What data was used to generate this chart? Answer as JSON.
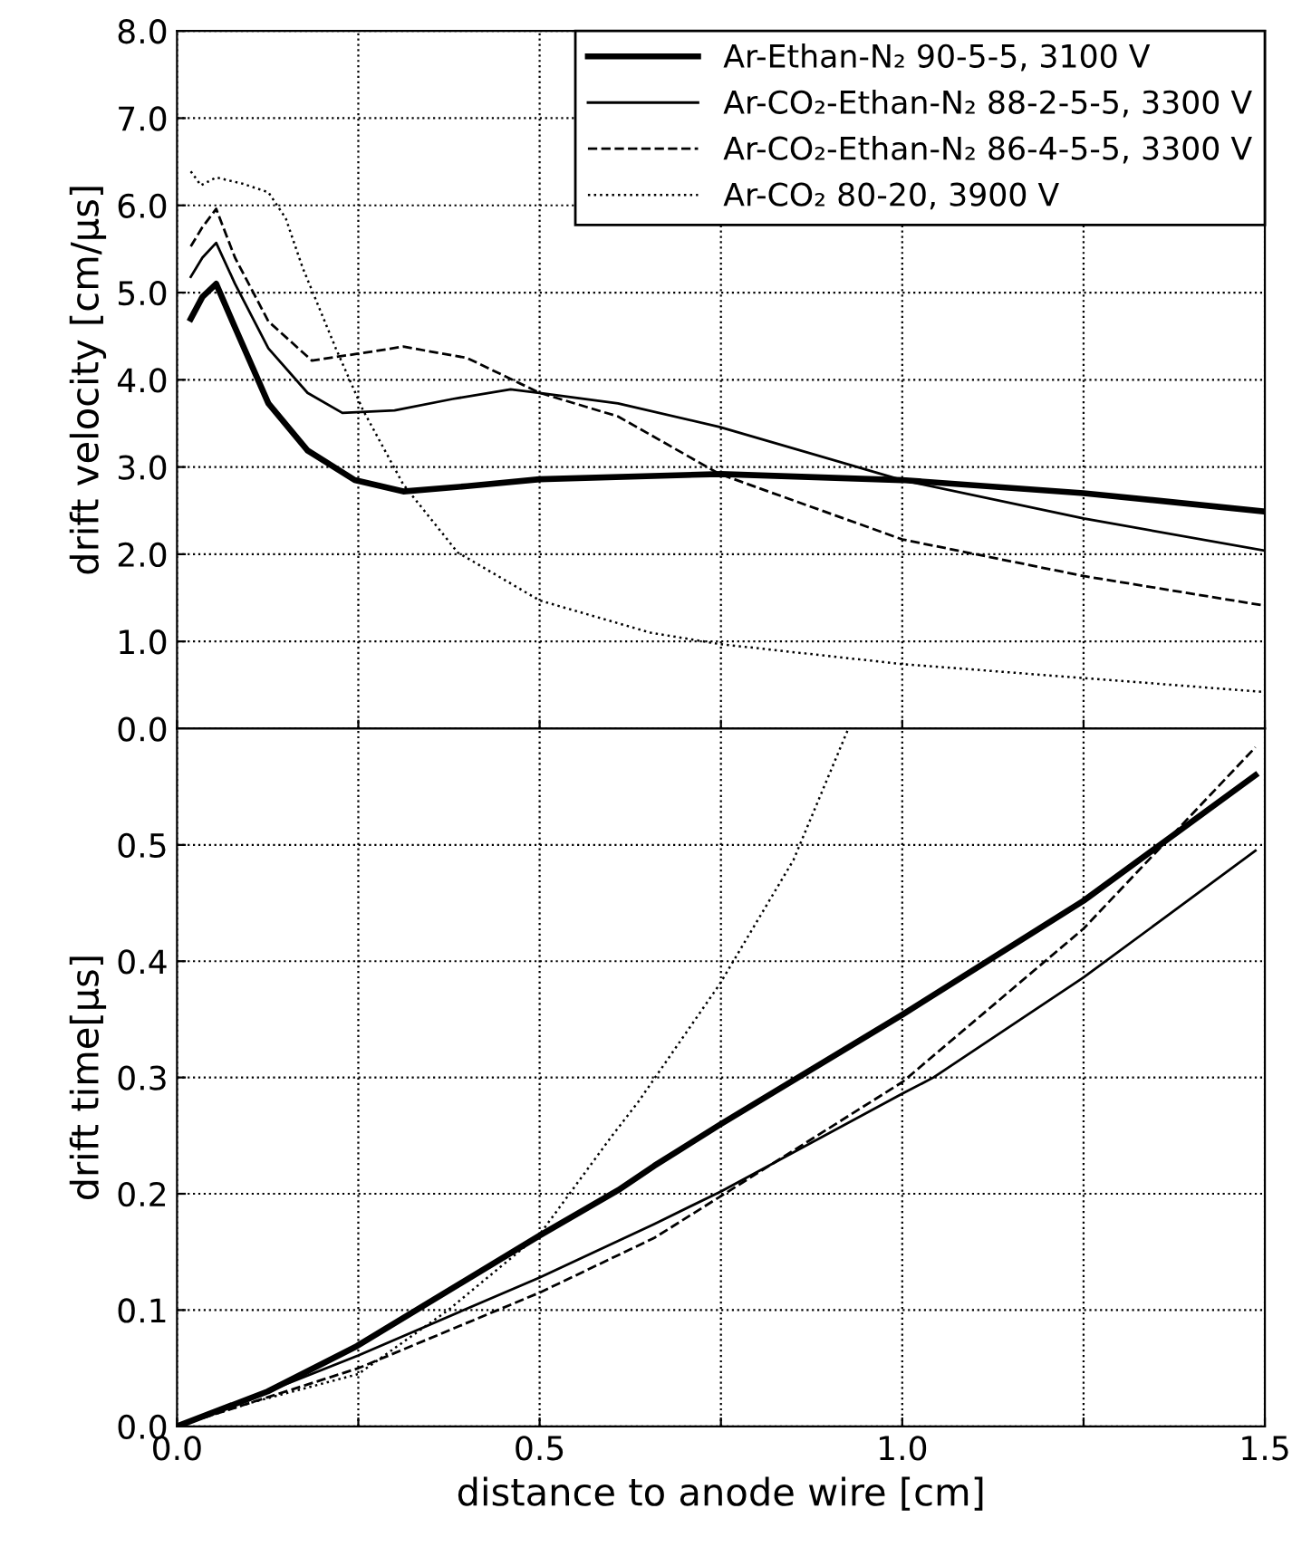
{
  "chart_data": [
    {
      "type": "line",
      "ylabel": "drift velocity [cm/μs]",
      "xlim": [
        0,
        1.5
      ],
      "xticks": [
        0,
        {
          "value": 0.25,
          "label": null
        },
        0.5,
        {
          "value": 0.75,
          "label": null
        },
        1.0,
        {
          "value": 1.25,
          "label": null
        },
        1.5
      ],
      "ylim": [
        0,
        8
      ],
      "yticks": [
        {
          "value": 0,
          "label": "0.0"
        },
        {
          "value": 1,
          "label": "1.0"
        },
        {
          "value": 2,
          "label": "2.0"
        },
        {
          "value": 3,
          "label": "3.0"
        },
        {
          "value": 4,
          "label": "4.0"
        },
        {
          "value": 5,
          "label": "5.0"
        },
        {
          "value": 6,
          "label": "6.0"
        },
        {
          "value": 7,
          "label": "7.0"
        },
        {
          "value": 8,
          "label": "8.0"
        }
      ],
      "tick_labels": "y",
      "grid": true,
      "legend": "top right",
      "series": [
        {
          "name": "Ar-Ethan-N₂ 90-5-5, 3100 V",
          "color": "#000000",
          "line_style": "solid",
          "x": [
            0.019,
            0.035,
            0.054,
            0.08,
            0.126,
            0.18,
            0.245,
            0.312,
            0.4,
            0.5,
            0.75,
            1.0,
            1.25,
            1.5
          ],
          "values": [
            4.7,
            4.95,
            5.1,
            4.6,
            3.73,
            3.19,
            2.85,
            2.72,
            2.78,
            2.86,
            2.92,
            2.85,
            2.7,
            2.49
          ]
        },
        {
          "name": "Ar-CO₂-Ethan-N₂ 88-2-5-5, 3300 V",
          "color": "#000000",
          "line_style": "solid",
          "x": [
            0.019,
            0.035,
            0.054,
            0.08,
            0.126,
            0.18,
            0.228,
            0.3,
            0.38,
            0.46,
            0.5,
            0.608,
            0.748,
            1.0,
            1.25,
            1.5
          ],
          "values": [
            5.18,
            5.4,
            5.57,
            5.1,
            4.36,
            3.85,
            3.62,
            3.65,
            3.78,
            3.89,
            3.85,
            3.73,
            3.46,
            2.85,
            2.41,
            2.04
          ]
        },
        {
          "name": "Ar-CO₂-Ethan-N₂ 86-4-5-5, 3300 V",
          "color": "#000000",
          "line_style": "dashed",
          "x": [
            0.019,
            0.035,
            0.054,
            0.08,
            0.126,
            0.186,
            0.25,
            0.312,
            0.4,
            0.45,
            0.5,
            0.608,
            0.748,
            1.0,
            1.25,
            1.5
          ],
          "values": [
            5.53,
            5.75,
            5.96,
            5.4,
            4.67,
            4.22,
            4.3,
            4.38,
            4.25,
            4.05,
            3.85,
            3.58,
            2.92,
            2.17,
            1.75,
            1.41
          ]
        },
        {
          "name": "Ar-CO₂ 80-20, 3900 V",
          "color": "#000000",
          "line_style": "dotted",
          "x": [
            0.019,
            0.033,
            0.054,
            0.09,
            0.126,
            0.15,
            0.173,
            0.219,
            0.256,
            0.312,
            0.387,
            0.5,
            0.653,
            0.748,
            1.0,
            1.25,
            1.5
          ],
          "values": [
            6.39,
            6.23,
            6.32,
            6.25,
            6.15,
            5.85,
            5.29,
            4.36,
            3.66,
            2.8,
            2.02,
            1.47,
            1.1,
            0.97,
            0.74,
            0.58,
            0.42
          ]
        }
      ]
    },
    {
      "type": "line",
      "xlabel": "distance to anode wire [cm]",
      "ylabel": "drift time[μs]",
      "xlim": [
        0,
        1.5
      ],
      "xticks": [
        {
          "value": 0,
          "label": "0.0"
        },
        {
          "value": 0.25,
          "label": null
        },
        0.5,
        {
          "value": 0.75,
          "label": null
        },
        {
          "value": 1.0,
          "label": "1.0"
        },
        {
          "value": 1.25,
          "label": null
        },
        1.5
      ],
      "ylim": [
        0,
        0.6
      ],
      "yticks": [
        {
          "value": 0,
          "label": "0.0"
        },
        0.1,
        0.2,
        0.3,
        0.4,
        0.5
      ],
      "grid": true,
      "series": [
        {
          "color": "#000000",
          "line_style": "solid",
          "x": [
            0,
            0.125,
            0.248,
            0.5,
            0.608,
            0.658,
            0.75,
            1.0,
            1.25,
            1.487
          ],
          "values": [
            0,
            0.03,
            0.069,
            0.164,
            0.203,
            0.224,
            0.26,
            0.354,
            0.452,
            0.56
          ]
        },
        {
          "color": "#000000",
          "line_style": "solid",
          "x": [
            0,
            0.125,
            0.25,
            0.5,
            0.658,
            0.75,
            1.0,
            1.043,
            1.25,
            1.487
          ],
          "values": [
            0,
            0.03,
            0.061,
            0.128,
            0.174,
            0.202,
            0.286,
            0.3,
            0.386,
            0.495
          ]
        },
        {
          "color": "#000000",
          "line_style": "dashed",
          "x": [
            0,
            0.125,
            0.2,
            0.25,
            0.5,
            0.658,
            0.75,
            1.0,
            1.25,
            1.487
          ],
          "values": [
            0,
            0.025,
            0.04,
            0.05,
            0.115,
            0.162,
            0.198,
            0.296,
            0.428,
            0.584
          ]
        },
        {
          "color": "#000000",
          "line_style": "dotted",
          "x": [
            0,
            0.1,
            0.25,
            0.374,
            0.5,
            0.6,
            0.636,
            0.748,
            0.85,
            0.925
          ],
          "values": [
            0,
            0.02,
            0.045,
            0.1,
            0.165,
            0.25,
            0.279,
            0.38,
            0.487,
            0.599
          ]
        }
      ]
    }
  ]
}
